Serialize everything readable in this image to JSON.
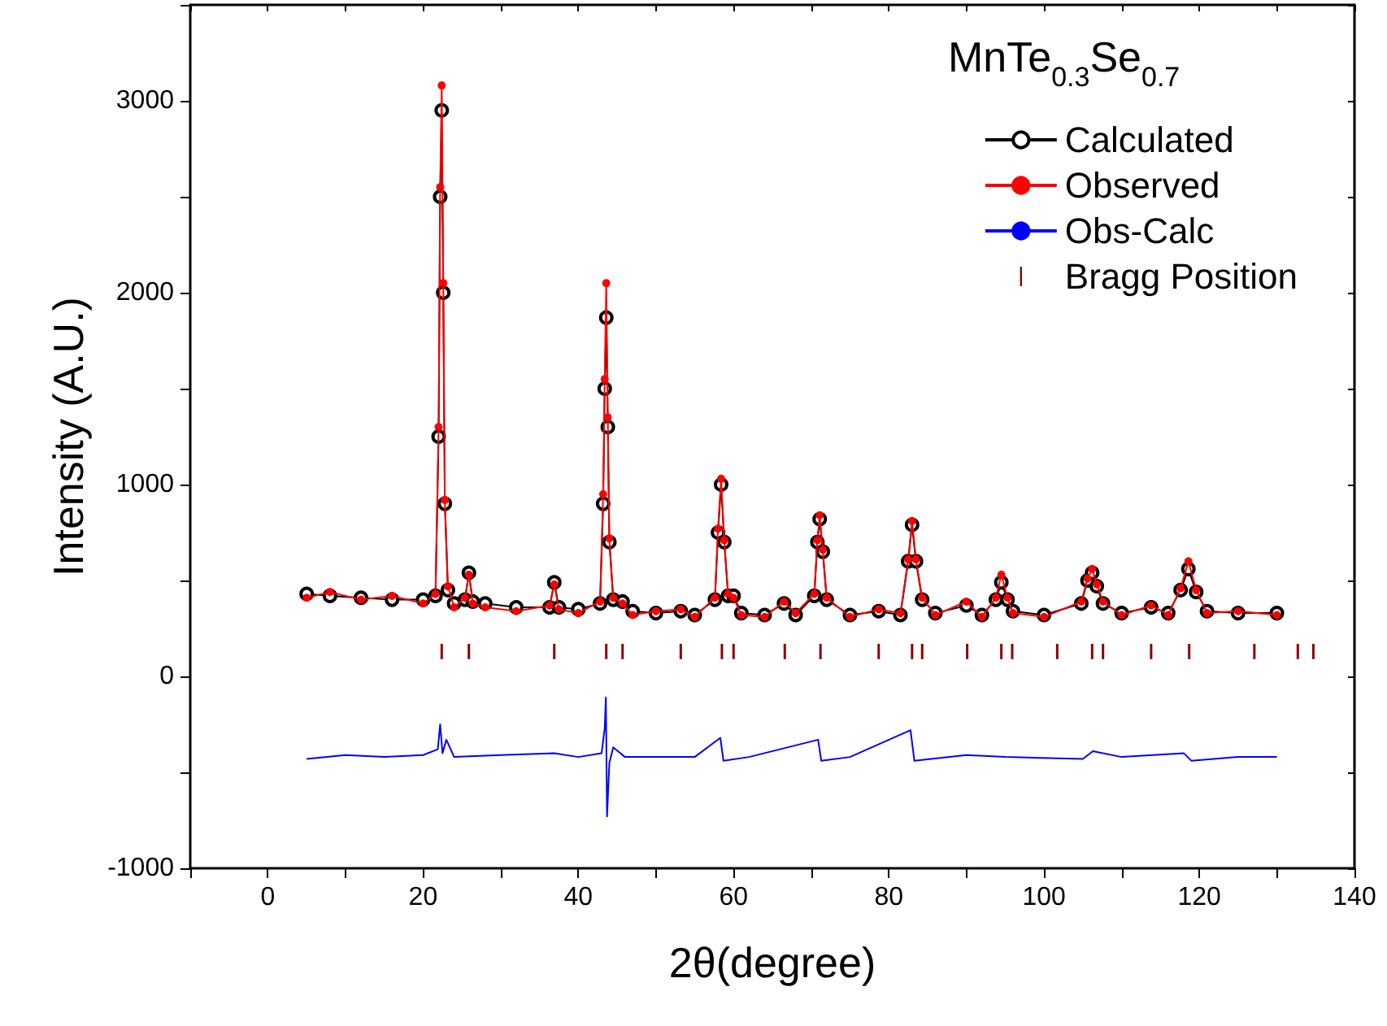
{
  "chart_data": {
    "type": "line",
    "legend_title": "MnTe$_{0.3}$Se$_{0.7}$",
    "xlabel": "2θ(degree)",
    "ylabel": "Intensity (A.U.)",
    "xlim": [
      -10,
      140
    ],
    "xticks": [
      0,
      20,
      40,
      60,
      80,
      100,
      120,
      140
    ],
    "ylim": [
      -1000,
      3500
    ],
    "yticks": [
      -1000,
      0,
      1000,
      2000,
      3000
    ],
    "grid": false,
    "legend": "top right",
    "x": [
      5,
      8,
      12,
      16,
      20,
      21.6,
      22.0,
      22.2,
      22.4,
      22.6,
      22.8,
      23.2,
      24,
      25.4,
      25.9,
      26.4,
      28,
      32,
      36.3,
      36.9,
      37.5,
      40,
      42.8,
      43.2,
      43.4,
      43.6,
      43.8,
      44.0,
      44.5,
      45.7,
      47,
      50,
      53.2,
      55,
      57.6,
      58.0,
      58.4,
      58.8,
      59.3,
      60.0,
      61,
      64,
      66.5,
      68,
      70.4,
      70.8,
      71.1,
      71.5,
      72,
      75,
      78.7,
      81.5,
      82.5,
      83,
      83.5,
      84.3,
      86,
      90,
      92,
      93.8,
      94.5,
      95.3,
      96,
      100,
      104.8,
      105.6,
      106.2,
      106.8,
      107.6,
      110,
      113.8,
      116,
      117.6,
      118.6,
      119.6,
      121,
      125,
      130
    ],
    "series": [
      {
        "name": "Calculated",
        "color": "#000000",
        "marker": "circle",
        "values": [
          430,
          420,
          410,
          400,
          400,
          420,
          1250,
          2500,
          2950,
          2000,
          900,
          450,
          380,
          400,
          540,
          390,
          380,
          360,
          360,
          490,
          360,
          350,
          380,
          900,
          1500,
          1870,
          1300,
          700,
          400,
          390,
          340,
          330,
          340,
          320,
          400,
          750,
          1000,
          700,
          420,
          420,
          330,
          320,
          380,
          320,
          420,
          700,
          820,
          650,
          400,
          320,
          340,
          320,
          600,
          790,
          600,
          400,
          330,
          370,
          320,
          400,
          490,
          400,
          340,
          320,
          380,
          500,
          540,
          470,
          380,
          330,
          360,
          330,
          450,
          560,
          440,
          340,
          330,
          330
        ]
      },
      {
        "name": "Observed",
        "color": "#ff0000",
        "marker": "circle",
        "values": [
          410,
          440,
          400,
          420,
          380,
          430,
          1300,
          2550,
          3080,
          2050,
          920,
          470,
          360,
          410,
          530,
          380,
          360,
          340,
          370,
          480,
          350,
          330,
          390,
          950,
          1550,
          2050,
          1350,
          720,
          410,
          380,
          320,
          340,
          350,
          310,
          410,
          770,
          1030,
          710,
          430,
          410,
          320,
          310,
          390,
          330,
          430,
          710,
          840,
          660,
          410,
          310,
          350,
          330,
          610,
          810,
          610,
          410,
          320,
          390,
          310,
          410,
          530,
          410,
          330,
          310,
          390,
          510,
          560,
          480,
          390,
          320,
          370,
          320,
          460,
          600,
          450,
          330,
          340,
          320
        ]
      },
      {
        "name": "Obs-Calc",
        "color": "#0000ff",
        "marker": "none",
        "x": [
          5,
          10,
          15,
          20,
          21.9,
          22.2,
          22.5,
          23,
          24,
          30,
          36.9,
          40,
          43.0,
          43.4,
          43.55,
          43.7,
          44.0,
          44.5,
          46,
          55,
          58.3,
          58.7,
          62,
          70.9,
          71.3,
          75,
          82.8,
          83.3,
          90,
          95,
          105,
          106.3,
          110,
          118,
          119,
          125,
          130
        ],
        "values": [
          -430,
          -410,
          -420,
          -410,
          -380,
          -250,
          -400,
          -330,
          -420,
          -410,
          -400,
          -420,
          -400,
          -270,
          -110,
          -730,
          -450,
          -370,
          -420,
          -420,
          -320,
          -440,
          -420,
          -330,
          -440,
          -420,
          -280,
          -440,
          -410,
          -420,
          -430,
          -390,
          -420,
          -400,
          -440,
          -420,
          -420
        ]
      },
      {
        "name": "Bragg Position",
        "type": "bar",
        "color": "#8b0000",
        "x": [
          22.4,
          25.9,
          36.9,
          43.6,
          45.7,
          53.2,
          58.5,
          60.0,
          66.6,
          71.2,
          78.7,
          83.0,
          84.3,
          90.1,
          94.5,
          95.9,
          101.7,
          106.2,
          107.6,
          113.8,
          118.7,
          127.1,
          132.7,
          134.7
        ],
        "base": [
          90,
          90,
          90,
          90,
          90,
          90,
          90,
          90,
          90,
          90,
          90,
          90,
          90,
          90,
          90,
          90,
          90,
          90,
          90,
          90,
          90,
          90,
          90,
          90
        ],
        "values": [
          80,
          80,
          80,
          80,
          80,
          80,
          80,
          80,
          80,
          80,
          80,
          80,
          80,
          80,
          80,
          80,
          80,
          80,
          80,
          80,
          80,
          80,
          80,
          80
        ]
      }
    ]
  }
}
